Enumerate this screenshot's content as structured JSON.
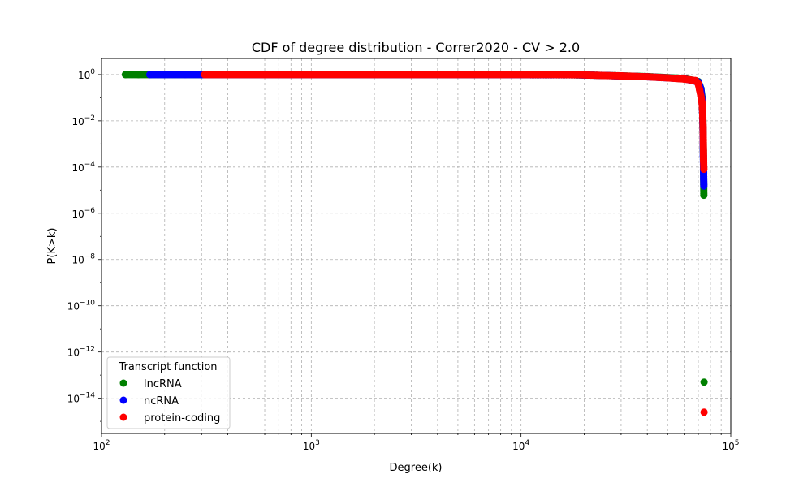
{
  "chart_data": {
    "type": "scatter",
    "title": "CDF of degree distribution - Correr2020 - CV > 2.0",
    "xlabel": "Degree(k)",
    "ylabel": "P(K>k)",
    "xscale": "log",
    "yscale": "log",
    "xlim": [
      100,
      100000
    ],
    "ylim": [
      3e-16,
      5
    ],
    "x_ticks": [
      {
        "value": 100,
        "base": "10",
        "exp": "2"
      },
      {
        "value": 1000,
        "base": "10",
        "exp": "3"
      },
      {
        "value": 10000,
        "base": "10",
        "exp": "4"
      },
      {
        "value": 100000,
        "base": "10",
        "exp": "5"
      }
    ],
    "y_ticks": [
      {
        "value": 1,
        "base": "10",
        "exp": "0"
      },
      {
        "value": 0.01,
        "base": "10",
        "exp": "−2"
      },
      {
        "value": 0.0001,
        "base": "10",
        "exp": "−4"
      },
      {
        "value": 1e-06,
        "base": "10",
        "exp": "−6"
      },
      {
        "value": 1e-08,
        "base": "10",
        "exp": "−8"
      },
      {
        "value": 1e-10,
        "base": "10",
        "exp": "−10"
      },
      {
        "value": 1e-12,
        "base": "10",
        "exp": "−12"
      },
      {
        "value": 1e-14,
        "base": "10",
        "exp": "−14"
      }
    ],
    "grid": "major and minor, dashed",
    "legend": {
      "title": "Transcript function",
      "placement": "lower-left"
    },
    "series": [
      {
        "name": "lncRNA",
        "color": "#008000",
        "points": [
          [
            130,
            1.0
          ],
          [
            150,
            1.0
          ],
          [
            170,
            1.0
          ],
          [
            200,
            1.0
          ],
          [
            300,
            1.0
          ],
          [
            1000,
            1.0
          ],
          [
            5000,
            1.0
          ],
          [
            18000,
            0.98
          ],
          [
            25000,
            0.92
          ],
          [
            40000,
            0.82
          ],
          [
            60000,
            0.68
          ],
          [
            70000,
            0.5
          ],
          [
            72000,
            0.25
          ],
          [
            73000,
            0.1
          ],
          [
            73500,
            0.02
          ],
          [
            73800,
            0.003
          ],
          [
            74000,
            0.0005
          ],
          [
            74200,
            0.0001
          ],
          [
            74400,
            6e-06
          ],
          [
            74600,
            5e-14
          ]
        ]
      },
      {
        "name": "ncRNA",
        "color": "#0000ff",
        "points": [
          [
            170,
            1.0
          ],
          [
            200,
            1.0
          ],
          [
            250,
            1.0
          ],
          [
            310,
            1.0
          ],
          [
            1000,
            1.0
          ],
          [
            5000,
            1.0
          ],
          [
            18000,
            0.98
          ],
          [
            25000,
            0.92
          ],
          [
            40000,
            0.8
          ],
          [
            60000,
            0.66
          ],
          [
            70000,
            0.48
          ],
          [
            72000,
            0.24
          ],
          [
            73000,
            0.08
          ],
          [
            73500,
            0.015
          ],
          [
            73800,
            0.002
          ],
          [
            74000,
            0.0003
          ],
          [
            74200,
            6e-05
          ],
          [
            74300,
            3e-05
          ],
          [
            74400,
            1.5e-05
          ]
        ]
      },
      {
        "name": "protein-coding",
        "color": "#ff0000",
        "points": [
          [
            310,
            1.0
          ],
          [
            400,
            1.0
          ],
          [
            600,
            1.0
          ],
          [
            1000,
            1.0
          ],
          [
            3000,
            1.0
          ],
          [
            8000,
            1.0
          ],
          [
            15000,
            1.0
          ],
          [
            19000,
            0.98
          ],
          [
            23000,
            0.93
          ],
          [
            30000,
            0.88
          ],
          [
            40000,
            0.8
          ],
          [
            50000,
            0.72
          ],
          [
            60000,
            0.64
          ],
          [
            68000,
            0.55
          ],
          [
            70000,
            0.4
          ],
          [
            71000,
            0.22
          ],
          [
            72000,
            0.12
          ],
          [
            73000,
            0.06
          ],
          [
            73500,
            0.02
          ],
          [
            73800,
            0.005
          ],
          [
            74000,
            0.001
          ],
          [
            74200,
            0.0002
          ],
          [
            74400,
            8e-05
          ],
          [
            74600,
            2.5e-15
          ]
        ]
      }
    ]
  }
}
